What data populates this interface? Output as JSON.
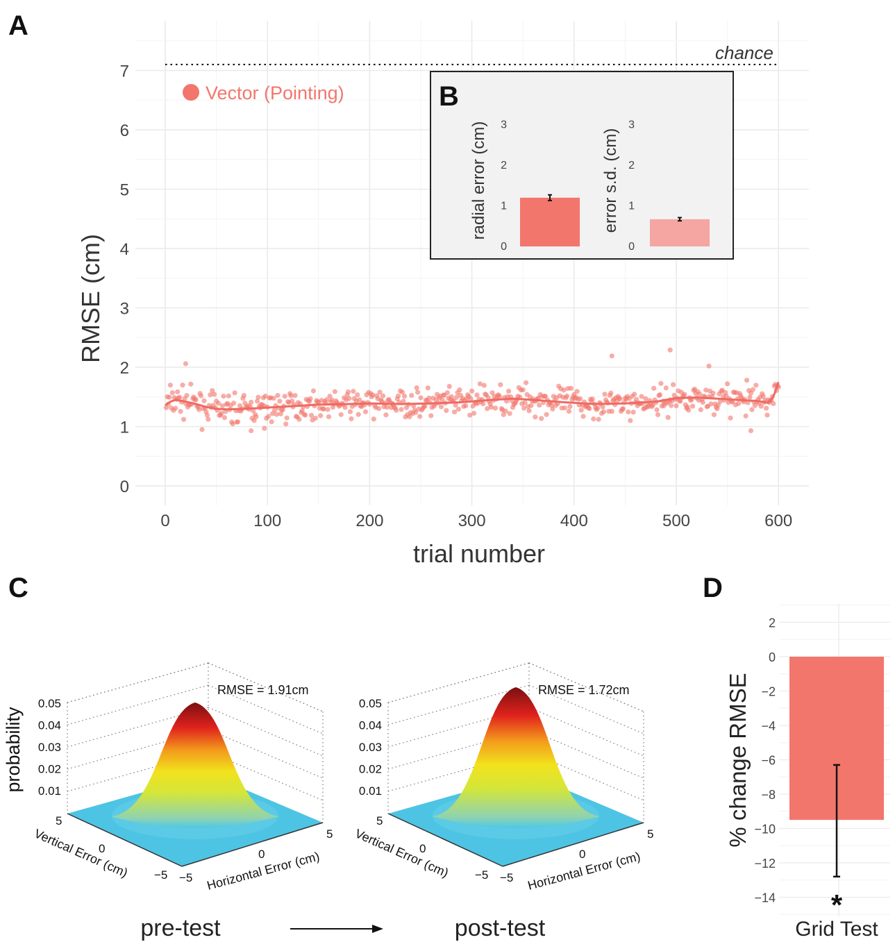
{
  "panels": {
    "A": "A",
    "B": "B",
    "C": "C",
    "D": "D"
  },
  "colors": {
    "accent": "#f2766c",
    "accent_light": "#f5a6a2",
    "grid": "#ececec"
  },
  "chart_data": [
    {
      "id": "A",
      "type": "scatter",
      "xlabel": "trial number",
      "ylabel": "RMSE (cm)",
      "xlim": [
        -20,
        630
      ],
      "ylim": [
        -0.2,
        7.35
      ],
      "xticks": [
        0,
        100,
        200,
        300,
        400,
        500,
        600
      ],
      "yticks": [
        0,
        1,
        2,
        3,
        4,
        5,
        6,
        7
      ],
      "chance": {
        "value": 7.1,
        "label": "chance"
      },
      "legend": {
        "label": "Vector (Pointing)",
        "placement": "top-left"
      },
      "smooth": [
        [
          0,
          1.36
        ],
        [
          5,
          1.42
        ],
        [
          10,
          1.45
        ],
        [
          20,
          1.42
        ],
        [
          30,
          1.38
        ],
        [
          40,
          1.33
        ],
        [
          50,
          1.3
        ],
        [
          60,
          1.29
        ],
        [
          80,
          1.3
        ],
        [
          100,
          1.32
        ],
        [
          120,
          1.34
        ],
        [
          150,
          1.37
        ],
        [
          180,
          1.38
        ],
        [
          200,
          1.39
        ],
        [
          230,
          1.38
        ],
        [
          260,
          1.39
        ],
        [
          290,
          1.41
        ],
        [
          320,
          1.45
        ],
        [
          340,
          1.47
        ],
        [
          360,
          1.45
        ],
        [
          390,
          1.41
        ],
        [
          420,
          1.38
        ],
        [
          450,
          1.39
        ],
        [
          480,
          1.42
        ],
        [
          500,
          1.48
        ],
        [
          520,
          1.49
        ],
        [
          540,
          1.47
        ],
        [
          560,
          1.45
        ],
        [
          580,
          1.43
        ],
        [
          590,
          1.4
        ],
        [
          595,
          1.5
        ],
        [
          600,
          1.75
        ]
      ],
      "outliers": [
        [
          20,
          2.06
        ],
        [
          437,
          2.19
        ],
        [
          494,
          2.29
        ],
        [
          532,
          2.02
        ],
        [
          573,
          0.93
        ],
        [
          84,
          0.93
        ],
        [
          97,
          0.97
        ]
      ],
      "n_points": 600,
      "point_seed": 7,
      "point_sd": 0.17,
      "grid": true
    },
    {
      "id": "B",
      "type": "bar",
      "placement": "inset top-right",
      "panels": [
        {
          "ylabel": "radial error (cm)",
          "value": 1.2,
          "err": 0.07,
          "color": "#f2766c"
        },
        {
          "ylabel": "error s.d. (cm)",
          "value": 0.67,
          "err": 0.04,
          "color": "#f5a6a2"
        }
      ],
      "yticks": [
        0,
        1,
        2,
        3
      ],
      "ylim": [
        0,
        3.5
      ]
    },
    {
      "id": "C",
      "type": "surface",
      "zlabel": "probability",
      "zticks": [
        "0.05",
        "0.04",
        "0.03",
        "0.02",
        "0.01"
      ],
      "xlabel": "Horizontal Error (cm)",
      "ylabel": "Vertical Error (cm)",
      "xticks": [
        "5",
        "0",
        "−5"
      ],
      "yticks": [
        "5",
        "0",
        "−5"
      ],
      "surfaces": [
        {
          "label": "pre-test",
          "annotation": "RMSE = 1.91cm",
          "rmse": 1.91
        },
        {
          "label": "post-test",
          "annotation": "RMSE = 1.72cm",
          "rmse": 1.72
        }
      ]
    },
    {
      "id": "D",
      "type": "bar",
      "categories": [
        "Grid Test"
      ],
      "values": [
        -9.5
      ],
      "error_low": -12.8,
      "error_high": -6.3,
      "ylabel": "% change RMSE",
      "ylim": [
        -14.8,
        3
      ],
      "yticks": [
        2,
        0,
        -2,
        -4,
        -6,
        -8,
        -10,
        -12,
        -14
      ],
      "ytick_labels": [
        "2",
        "0",
        "−2",
        "−4",
        "−6",
        "−8",
        "−10",
        "−12",
        "−14"
      ],
      "significance": "*"
    }
  ]
}
